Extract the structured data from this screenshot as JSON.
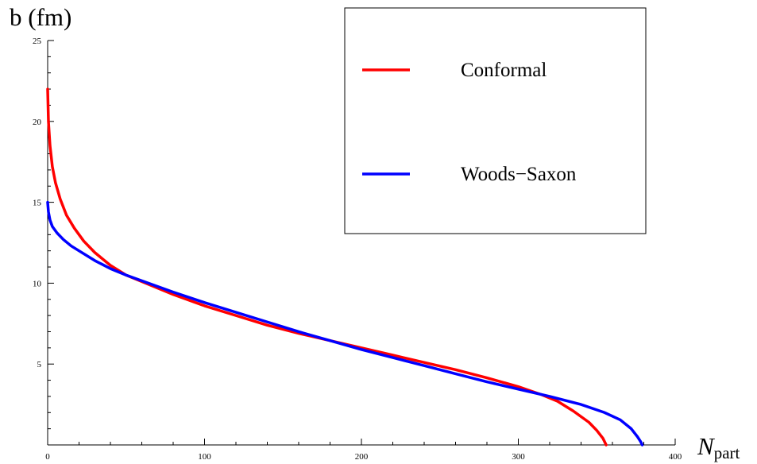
{
  "chart_data": {
    "type": "line",
    "ylabel": "b (fm)",
    "xlabel": {
      "main": "N",
      "sub": "part"
    },
    "xlim": [
      0,
      400
    ],
    "ylim": [
      0,
      25
    ],
    "x_ticks": [
      "0",
      "100",
      "200",
      "300",
      "400"
    ],
    "y_ticks": [
      "5",
      "10",
      "15",
      "20",
      "25"
    ],
    "legend_position": "top-right",
    "series": [
      {
        "name": "Conformal",
        "color": "#ff0000",
        "points": [
          [
            0,
            22.0
          ],
          [
            0.5,
            20.0
          ],
          [
            1.5,
            18.5
          ],
          [
            3,
            17.2
          ],
          [
            5,
            16.2
          ],
          [
            8,
            15.2
          ],
          [
            12,
            14.2
          ],
          [
            17,
            13.4
          ],
          [
            23,
            12.6
          ],
          [
            30,
            11.9
          ],
          [
            40,
            11.1
          ],
          [
            50,
            10.5
          ],
          [
            60,
            10.1
          ],
          [
            80,
            9.3
          ],
          [
            100,
            8.6
          ],
          [
            120,
            8.0
          ],
          [
            140,
            7.4
          ],
          [
            160,
            6.9
          ],
          [
            180,
            6.45
          ],
          [
            200,
            6.0
          ],
          [
            220,
            5.55
          ],
          [
            240,
            5.1
          ],
          [
            260,
            4.65
          ],
          [
            280,
            4.15
          ],
          [
            300,
            3.6
          ],
          [
            315,
            3.1
          ],
          [
            325,
            2.7
          ],
          [
            335,
            2.1
          ],
          [
            345,
            1.4
          ],
          [
            350,
            0.9
          ],
          [
            354,
            0.4
          ],
          [
            356,
            0.0
          ]
        ]
      },
      {
        "name": "Woods−Saxon",
        "color": "#0000ff",
        "points": [
          [
            0,
            15.0
          ],
          [
            0.5,
            14.4
          ],
          [
            1.5,
            13.9
          ],
          [
            3,
            13.5
          ],
          [
            6,
            13.1
          ],
          [
            10,
            12.7
          ],
          [
            15,
            12.3
          ],
          [
            20,
            12.0
          ],
          [
            30,
            11.4
          ],
          [
            40,
            10.9
          ],
          [
            50,
            10.5
          ],
          [
            60,
            10.15
          ],
          [
            80,
            9.45
          ],
          [
            100,
            8.8
          ],
          [
            120,
            8.2
          ],
          [
            140,
            7.6
          ],
          [
            160,
            7.0
          ],
          [
            180,
            6.45
          ],
          [
            200,
            5.9
          ],
          [
            220,
            5.4
          ],
          [
            240,
            4.9
          ],
          [
            260,
            4.4
          ],
          [
            280,
            3.9
          ],
          [
            300,
            3.45
          ],
          [
            320,
            3.0
          ],
          [
            340,
            2.5
          ],
          [
            355,
            2.0
          ],
          [
            365,
            1.55
          ],
          [
            372,
            1.0
          ],
          [
            376,
            0.5
          ],
          [
            378,
            0.2
          ],
          [
            379,
            0.0
          ]
        ]
      }
    ]
  }
}
